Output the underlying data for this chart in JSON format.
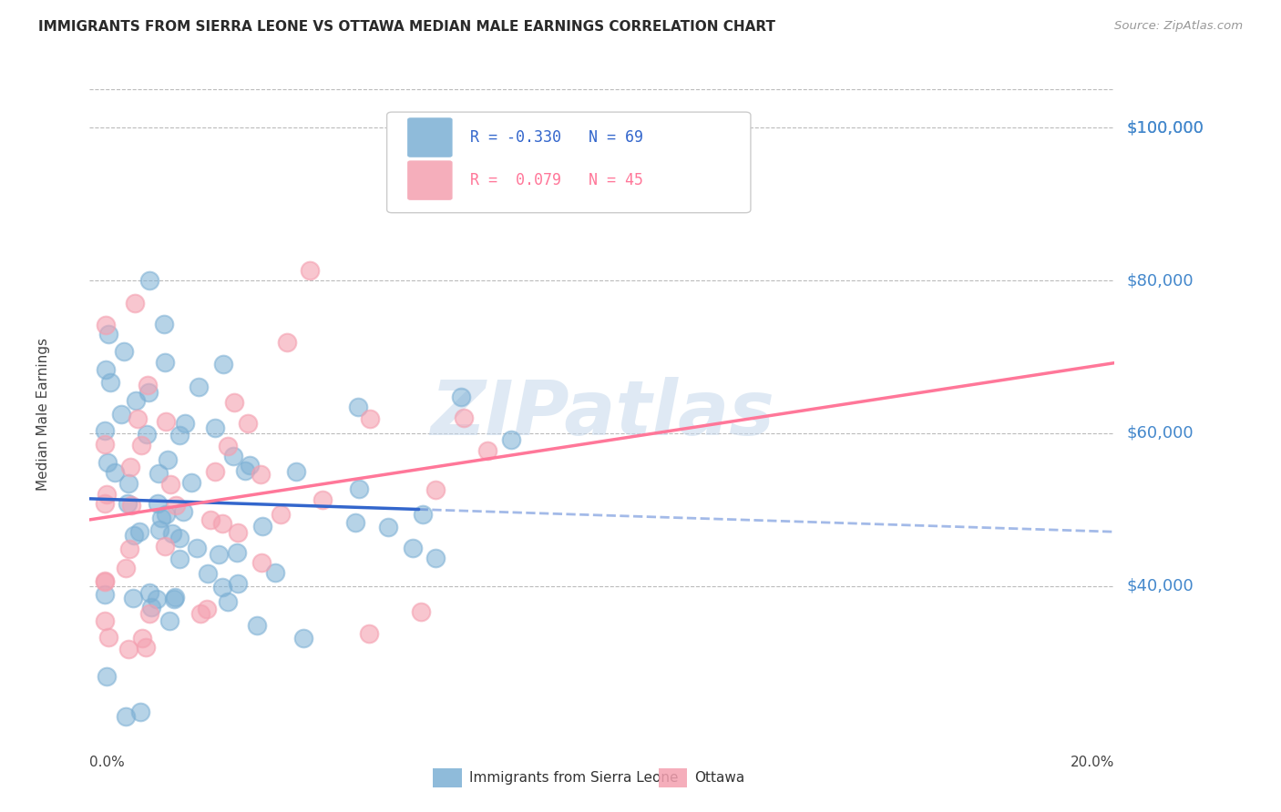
{
  "title": "IMMIGRANTS FROM SIERRA LEONE VS OTTAWA MEDIAN MALE EARNINGS CORRELATION CHART",
  "source": "Source: ZipAtlas.com",
  "ylabel": "Median Male Earnings",
  "ytick_values": [
    40000,
    60000,
    80000,
    100000
  ],
  "ytick_labels": [
    "$40,000",
    "$60,000",
    "$80,000",
    "$100,000"
  ],
  "ymin": 20000,
  "ymax": 105000,
  "xmin": -0.002,
  "xmax": 0.207,
  "legend_label_blue": "Immigrants from Sierra Leone",
  "legend_label_pink": "Ottawa",
  "R_blue": -0.33,
  "N_blue": 69,
  "R_pink": 0.079,
  "N_pink": 45,
  "color_blue": "#7BAFD4",
  "color_pink": "#F4A0B0",
  "color_title": "#2A2A2A",
  "color_yaxis": "#4488CC",
  "watermark_color": "#C5D8EC",
  "background": "#FFFFFF"
}
